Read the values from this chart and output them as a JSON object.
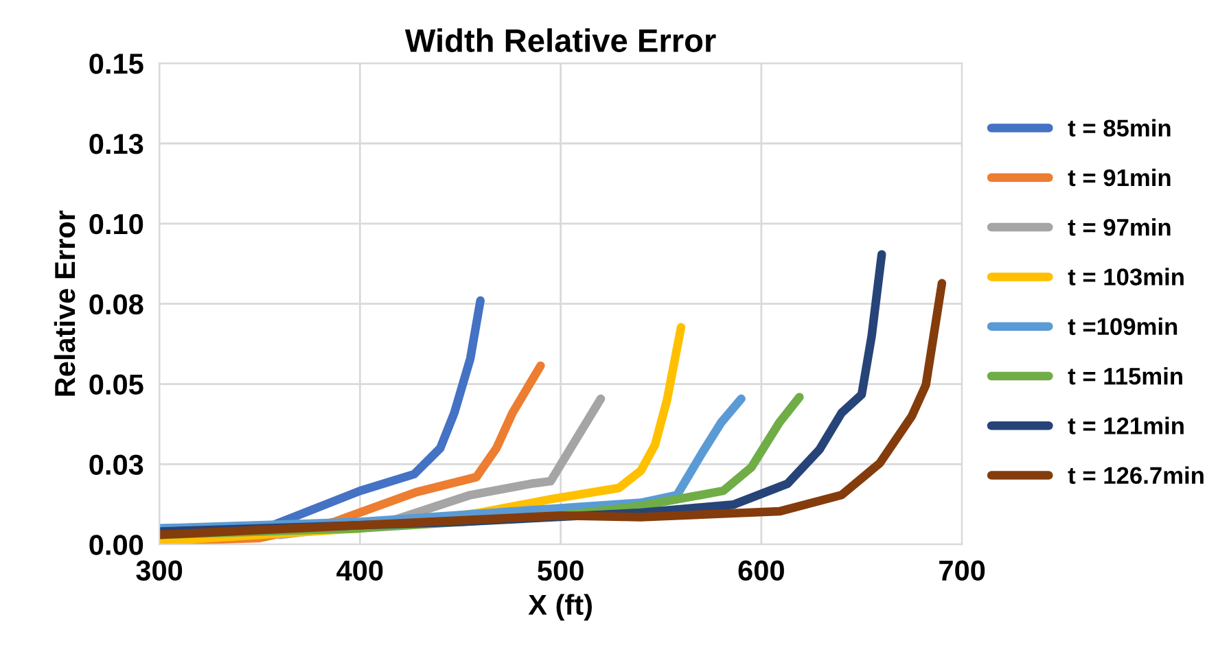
{
  "chart_data": {
    "type": "line",
    "title": "Width Relative Error",
    "xlabel": "X (ft)",
    "ylabel": "Relative Error",
    "xlim": [
      300,
      700
    ],
    "xticks": [
      300,
      400,
      500,
      600,
      700
    ],
    "ylim": [
      0,
      0.15
    ],
    "yticks": [
      {
        "value": 0,
        "label": "0.00"
      },
      {
        "value": 0.025,
        "label": "0.03"
      },
      {
        "value": 0.05,
        "label": "0.05"
      },
      {
        "value": 0.075,
        "label": "0.08"
      },
      {
        "value": 0.1,
        "label": "0.10"
      },
      {
        "value": 0.125,
        "label": "0.13"
      },
      {
        "value": 0.15,
        "label": "0.15"
      }
    ],
    "grid": true,
    "legend": "right",
    "marker": "none",
    "line_style": "solid",
    "series": [
      {
        "name": "t = 85min",
        "color": "#4472c4",
        "x": [
          300,
          355,
          400,
          427,
          440,
          447,
          455,
          460
        ],
        "values": [
          0.005,
          0.0056,
          0.0167,
          0.0219,
          0.03,
          0.041,
          0.058,
          0.076
        ]
      },
      {
        "name": "t = 91min",
        "color": "#ed7d31",
        "x": [
          300,
          350,
          387,
          428,
          458,
          468,
          476,
          490
        ],
        "values": [
          0.001,
          0.002,
          0.007,
          0.0163,
          0.021,
          0.03,
          0.041,
          0.0557
        ]
      },
      {
        "name": "t = 97min",
        "color": "#a5a5a5",
        "x": [
          360,
          414,
          455,
          486,
          495,
          505,
          520
        ],
        "values": [
          0.003,
          0.007,
          0.0154,
          0.019,
          0.0197,
          0.03,
          0.0454
        ]
      },
      {
        "name": "t = 103min",
        "color": "#ffc000",
        "x": [
          300,
          400,
          460,
          495,
          529,
          540,
          547,
          553,
          560
        ],
        "values": [
          0.001,
          0.005,
          0.0099,
          0.0141,
          0.0176,
          0.023,
          0.031,
          0.045,
          0.0677
        ]
      },
      {
        "name": "t =109min",
        "color": "#5b9bd5",
        "x": [
          300,
          400,
          495,
          540,
          558,
          570,
          580,
          590
        ],
        "values": [
          0.005,
          0.007,
          0.0111,
          0.013,
          0.0154,
          0.028,
          0.038,
          0.0454
        ]
      },
      {
        "name": "t = 115min",
        "color": "#70ad47",
        "x": [
          300,
          400,
          500,
          540,
          581,
          595,
          609,
          619
        ],
        "values": [
          0.003,
          0.005,
          0.009,
          0.012,
          0.0167,
          0.024,
          0.038,
          0.0459
        ]
      },
      {
        "name": "t = 121min",
        "color": "#264478",
        "x": [
          300,
          450,
          540,
          586,
          613,
          629,
          640,
          650,
          655,
          660
        ],
        "values": [
          0.004,
          0.007,
          0.0099,
          0.0124,
          0.0189,
          0.0296,
          0.041,
          0.0467,
          0.065,
          0.0904
        ]
      },
      {
        "name": "t = 126.7min",
        "color": "#843c0c",
        "x": [
          300,
          400,
          500,
          540,
          609,
          640,
          659,
          675,
          682,
          690
        ],
        "values": [
          0.003,
          0.006,
          0.009,
          0.0085,
          0.0103,
          0.0154,
          0.0253,
          0.04,
          0.0497,
          0.0814
        ]
      }
    ]
  }
}
